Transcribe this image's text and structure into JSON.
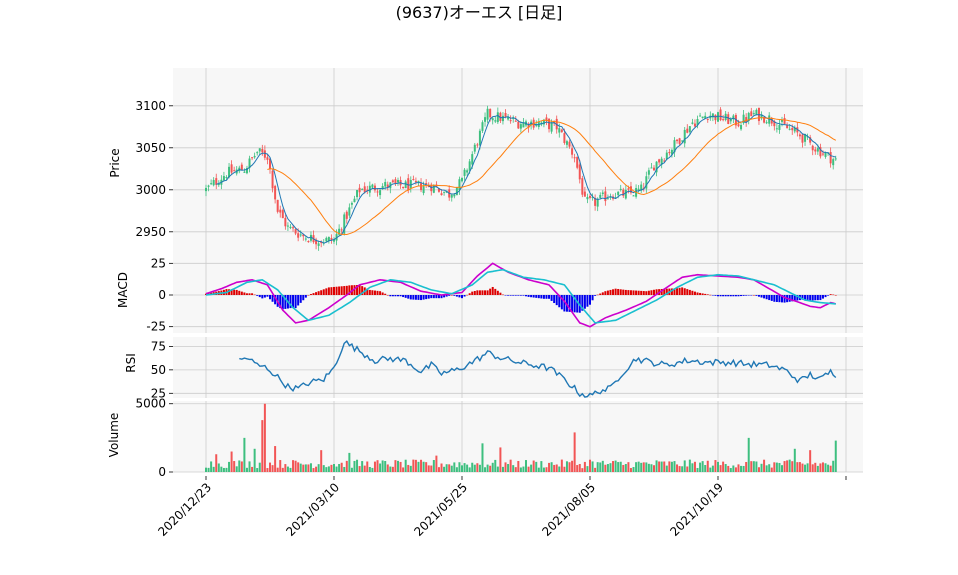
{
  "chart_data": {
    "type": "candlestick",
    "title": "(9637)オーエス [日足]",
    "x_tick_labels": [
      "2020/12/23",
      "2021/03/10",
      "2021/05/25",
      "2021/08/05",
      "2021/10/19"
    ],
    "x_tick_index": [
      0,
      50,
      100,
      150,
      200
    ],
    "n_days": 247,
    "colors": {
      "up": "#3dbf7f",
      "down": "#f25555",
      "ma_short": "#1f77b4",
      "ma_long": "#ff7f0e",
      "macd": "#cc00cc",
      "signal": "#19bfcf",
      "hist_pos": "#dd0000",
      "hist_neg": "#0000ee",
      "rsi": "#1f77b4"
    },
    "price_panel": {
      "ylabel": "Price",
      "ylim": [
        2920,
        3145
      ],
      "yticks": [
        2950,
        3000,
        3050,
        3100
      ],
      "close_anchors": [
        [
          0,
          3000
        ],
        [
          8,
          3020
        ],
        [
          15,
          3025
        ],
        [
          20,
          3045
        ],
        [
          24,
          3040
        ],
        [
          28,
          2975
        ],
        [
          32,
          2955
        ],
        [
          38,
          2945
        ],
        [
          44,
          2940
        ],
        [
          50,
          2940
        ],
        [
          55,
          2970
        ],
        [
          60,
          3000
        ],
        [
          70,
          3005
        ],
        [
          80,
          3005
        ],
        [
          88,
          3005
        ],
        [
          95,
          2995
        ],
        [
          100,
          3010
        ],
        [
          105,
          3050
        ],
        [
          110,
          3090
        ],
        [
          116,
          3085
        ],
        [
          122,
          3080
        ],
        [
          130,
          3080
        ],
        [
          137,
          3075
        ],
        [
          144,
          3040
        ],
        [
          148,
          2985
        ],
        [
          152,
          2985
        ],
        [
          158,
          2995
        ],
        [
          165,
          2995
        ],
        [
          170,
          3000
        ],
        [
          175,
          3030
        ],
        [
          182,
          3050
        ],
        [
          190,
          3080
        ],
        [
          196,
          3090
        ],
        [
          202,
          3085
        ],
        [
          208,
          3080
        ],
        [
          214,
          3090
        ],
        [
          220,
          3085
        ],
        [
          226,
          3075
        ],
        [
          232,
          3065
        ],
        [
          238,
          3050
        ],
        [
          243,
          3040
        ],
        [
          246,
          3035
        ]
      ]
    },
    "macd_panel": {
      "ylabel": "MACD",
      "ylim": [
        -30,
        30
      ],
      "yticks": [
        -25,
        0,
        25
      ],
      "macd_anchors": [
        [
          0,
          1
        ],
        [
          6,
          5
        ],
        [
          12,
          10
        ],
        [
          18,
          12
        ],
        [
          24,
          8
        ],
        [
          30,
          -12
        ],
        [
          35,
          -22
        ],
        [
          40,
          -20
        ],
        [
          48,
          -10
        ],
        [
          55,
          0
        ],
        [
          60,
          8
        ],
        [
          68,
          12
        ],
        [
          76,
          10
        ],
        [
          84,
          3
        ],
        [
          92,
          0
        ],
        [
          100,
          2
        ],
        [
          106,
          15
        ],
        [
          112,
          25
        ],
        [
          118,
          18
        ],
        [
          126,
          12
        ],
        [
          134,
          8
        ],
        [
          140,
          -5
        ],
        [
          146,
          -22
        ],
        [
          150,
          -25
        ],
        [
          156,
          -18
        ],
        [
          164,
          -12
        ],
        [
          172,
          -5
        ],
        [
          180,
          6
        ],
        [
          186,
          14
        ],
        [
          192,
          16
        ],
        [
          200,
          15
        ],
        [
          208,
          14
        ],
        [
          214,
          12
        ],
        [
          220,
          5
        ],
        [
          226,
          -2
        ],
        [
          232,
          -6
        ],
        [
          236,
          -9
        ],
        [
          240,
          -10
        ],
        [
          244,
          -6
        ],
        [
          246,
          -7
        ]
      ],
      "signal_anchors": [
        [
          0,
          0
        ],
        [
          8,
          2
        ],
        [
          16,
          10
        ],
        [
          22,
          12
        ],
        [
          28,
          4
        ],
        [
          34,
          -10
        ],
        [
          40,
          -20
        ],
        [
          48,
          -16
        ],
        [
          56,
          -6
        ],
        [
          64,
          6
        ],
        [
          72,
          12
        ],
        [
          80,
          10
        ],
        [
          88,
          4
        ],
        [
          96,
          1
        ],
        [
          104,
          8
        ],
        [
          110,
          18
        ],
        [
          116,
          20
        ],
        [
          124,
          14
        ],
        [
          132,
          12
        ],
        [
          140,
          8
        ],
        [
          146,
          -8
        ],
        [
          152,
          -22
        ],
        [
          160,
          -20
        ],
        [
          168,
          -12
        ],
        [
          176,
          -4
        ],
        [
          184,
          6
        ],
        [
          192,
          14
        ],
        [
          200,
          16
        ],
        [
          208,
          15
        ],
        [
          214,
          12
        ],
        [
          222,
          8
        ],
        [
          228,
          2
        ],
        [
          234,
          -4
        ],
        [
          240,
          -6
        ],
        [
          246,
          -7
        ]
      ]
    },
    "rsi_panel": {
      "ylabel": "RSI",
      "ylim": [
        20,
        85
      ],
      "yticks": [
        25,
        50,
        75
      ],
      "rsi_anchors": [
        [
          13,
          60
        ],
        [
          16,
          63
        ],
        [
          20,
          55
        ],
        [
          24,
          52
        ],
        [
          28,
          42
        ],
        [
          32,
          32
        ],
        [
          36,
          30
        ],
        [
          40,
          36
        ],
        [
          46,
          40
        ],
        [
          50,
          52
        ],
        [
          54,
          80
        ],
        [
          60,
          70
        ],
        [
          66,
          60
        ],
        [
          72,
          62
        ],
        [
          78,
          60
        ],
        [
          84,
          48
        ],
        [
          88,
          55
        ],
        [
          92,
          46
        ],
        [
          98,
          50
        ],
        [
          104,
          58
        ],
        [
          110,
          68
        ],
        [
          116,
          62
        ],
        [
          122,
          58
        ],
        [
          128,
          55
        ],
        [
          134,
          52
        ],
        [
          140,
          40
        ],
        [
          146,
          25
        ],
        [
          150,
          22
        ],
        [
          154,
          28
        ],
        [
          158,
          30
        ],
        [
          162,
          45
        ],
        [
          168,
          62
        ],
        [
          174,
          58
        ],
        [
          180,
          55
        ],
        [
          188,
          60
        ],
        [
          196,
          58
        ],
        [
          204,
          58
        ],
        [
          212,
          56
        ],
        [
          220,
          55
        ],
        [
          226,
          50
        ],
        [
          232,
          38
        ],
        [
          236,
          45
        ],
        [
          240,
          40
        ],
        [
          244,
          48
        ],
        [
          246,
          45
        ]
      ]
    },
    "volume_panel": {
      "ylabel": "Volume",
      "ylim": [
        0,
        5200
      ],
      "yticks": [
        0,
        5000
      ],
      "spike_days": [
        [
          4,
          1300
        ],
        [
          10,
          1500
        ],
        [
          15,
          2500
        ],
        [
          19,
          1700
        ],
        [
          22,
          3800
        ],
        [
          23,
          5000
        ],
        [
          27,
          1900
        ],
        [
          45,
          1600
        ],
        [
          56,
          1400
        ],
        [
          90,
          1200
        ],
        [
          108,
          2100
        ],
        [
          115,
          1800
        ],
        [
          144,
          2900
        ],
        [
          150,
          900
        ],
        [
          212,
          2500
        ],
        [
          230,
          1700
        ],
        [
          236,
          1600
        ],
        [
          246,
          2300
        ]
      ],
      "base_volume": 700
    }
  }
}
